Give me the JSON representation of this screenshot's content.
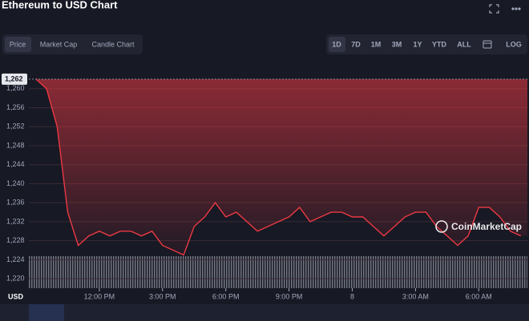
{
  "chart_data": {
    "type": "line",
    "title": "Ethereum to USD Chart",
    "tabs": [
      "Price",
      "Market Cap",
      "Candle Chart"
    ],
    "ranges": [
      "1D",
      "7D",
      "1M",
      "3M",
      "1Y",
      "YTD",
      "ALL",
      "LOG"
    ],
    "watermark": "CoinMarketCap",
    "y_label": "USD",
    "categories": [
      null,
      null,
      null,
      null,
      null,
      null,
      "12:00 PM",
      null,
      null,
      null,
      null,
      null,
      "3:00 PM",
      null,
      null,
      null,
      null,
      null,
      "6:00 PM",
      null,
      null,
      null,
      null,
      null,
      "9:00 PM",
      null,
      null,
      null,
      null,
      null,
      "8",
      null,
      null,
      null,
      null,
      null,
      "3:00 AM",
      null,
      null,
      null,
      null,
      null,
      "6:00 AM",
      null,
      null,
      null,
      null
    ],
    "series": [
      {
        "name": "Price",
        "color": "#ea3943",
        "values": [
          1262,
          1260,
          1252,
          1234,
          1227,
          1229,
          1230,
          1229,
          1230,
          1230,
          1229,
          1230,
          1227,
          1226,
          1225,
          1231,
          1233,
          1236,
          1233,
          1234,
          1232,
          1230,
          1231,
          1232,
          1233,
          1235,
          1232,
          1233,
          1234,
          1234,
          1233,
          1233,
          1231,
          1229,
          1231,
          1233,
          1234,
          1234,
          1231,
          1229,
          1227,
          1229,
          1235,
          1235,
          1233,
          1230,
          1229
        ]
      }
    ],
    "current_price": {
      "value": 1262,
      "label": "1,262"
    },
    "ylim": [
      1218,
      1263.5
    ],
    "yticks": [
      {
        "value": 1220,
        "label": "1,220"
      },
      {
        "value": 1224,
        "label": "1,224"
      },
      {
        "value": 1228,
        "label": "1,228"
      },
      {
        "value": 1232,
        "label": "1,232"
      },
      {
        "value": 1236,
        "label": "1,236"
      },
      {
        "value": 1240,
        "label": "1,240"
      },
      {
        "value": 1244,
        "label": "1,244"
      },
      {
        "value": 1248,
        "label": "1,248"
      },
      {
        "value": 1252,
        "label": "1,252"
      },
      {
        "value": 1256,
        "label": "1,256"
      },
      {
        "value": 1260,
        "label": "1,260"
      }
    ],
    "grid": true
  }
}
